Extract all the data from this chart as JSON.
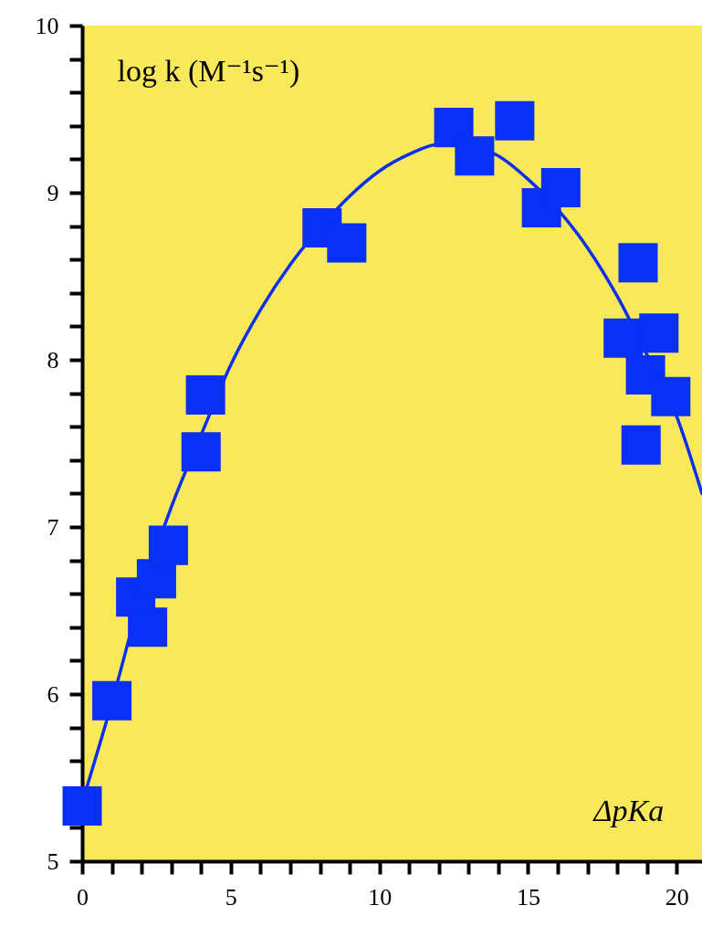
{
  "chart_data": {
    "type": "scatter",
    "xlabel": "ΔpKa",
    "ylabel": "log k (M⁻¹s⁻¹)",
    "xlim": [
      0,
      20.85
    ],
    "ylim": [
      5,
      10
    ],
    "xticks": [
      0,
      {
        "value": 1,
        "label": null
      },
      {
        "value": 2,
        "label": null
      },
      {
        "value": 3,
        "label": null
      },
      {
        "value": 4,
        "label": null
      },
      5,
      {
        "value": 6,
        "label": null
      },
      {
        "value": 7,
        "label": null
      },
      {
        "value": 8,
        "label": null
      },
      {
        "value": 9,
        "label": null
      },
      10,
      {
        "value": 11,
        "label": null
      },
      {
        "value": 12,
        "label": null
      },
      {
        "value": 13,
        "label": null
      },
      {
        "value": 14,
        "label": null
      },
      15,
      {
        "value": 16,
        "label": null
      },
      {
        "value": 17,
        "label": null
      },
      {
        "value": 18,
        "label": null
      },
      {
        "value": 19,
        "label": null
      },
      20
    ],
    "yticks": [
      5,
      {
        "value": 5.2,
        "label": null
      },
      {
        "value": 5.4,
        "label": null
      },
      {
        "value": 5.6,
        "label": null
      },
      {
        "value": 5.8,
        "label": null
      },
      6,
      {
        "value": 6.2,
        "label": null
      },
      {
        "value": 6.4,
        "label": null
      },
      {
        "value": 6.6,
        "label": null
      },
      {
        "value": 6.8,
        "label": null
      },
      7,
      {
        "value": 7.2,
        "label": null
      },
      {
        "value": 7.4,
        "label": null
      },
      {
        "value": 7.6,
        "label": null
      },
      {
        "value": 7.8,
        "label": null
      },
      8,
      {
        "value": 8.2,
        "label": null
      },
      {
        "value": 8.4,
        "label": null
      },
      {
        "value": 8.6,
        "label": null
      },
      {
        "value": 8.8,
        "label": null
      },
      9,
      {
        "value": 9.2,
        "label": null
      },
      {
        "value": 9.4,
        "label": null
      },
      {
        "value": 9.6,
        "label": null
      },
      {
        "value": 9.8,
        "label": null
      },
      10
    ],
    "grid": false,
    "series": [
      {
        "type": "line",
        "color": "#0a2ff0",
        "line_style": "solid",
        "x": [
          0,
          1,
          2,
          3,
          4,
          5,
          6,
          7,
          8,
          9,
          10,
          11,
          12,
          13,
          14,
          15,
          16,
          17,
          18,
          19,
          20,
          20.85
        ],
        "values": [
          5.35,
          5.95,
          6.6,
          7.12,
          7.55,
          7.97,
          8.3,
          8.57,
          8.79,
          8.98,
          9.13,
          9.23,
          9.29,
          9.28,
          9.22,
          9.08,
          8.9,
          8.67,
          8.38,
          8.03,
          7.66,
          7.2
        ]
      },
      {
        "type": "scatter",
        "marker": "square",
        "color": "#0a2ff5",
        "x": [
          0,
          1.0,
          1.8,
          2.2,
          2.5,
          2.9,
          4.0,
          4.15,
          8.07,
          8.9,
          12.5,
          13.2,
          14.55,
          15.45,
          16.1,
          18.7,
          18.2,
          19.4,
          18.95,
          19.8,
          18.8
        ],
        "values": [
          5.33,
          5.96,
          6.58,
          6.4,
          6.69,
          6.89,
          7.45,
          7.79,
          8.79,
          8.7,
          9.39,
          9.22,
          9.43,
          8.91,
          9.03,
          8.58,
          8.13,
          8.16,
          7.91,
          7.78,
          7.49
        ]
      }
    ]
  }
}
